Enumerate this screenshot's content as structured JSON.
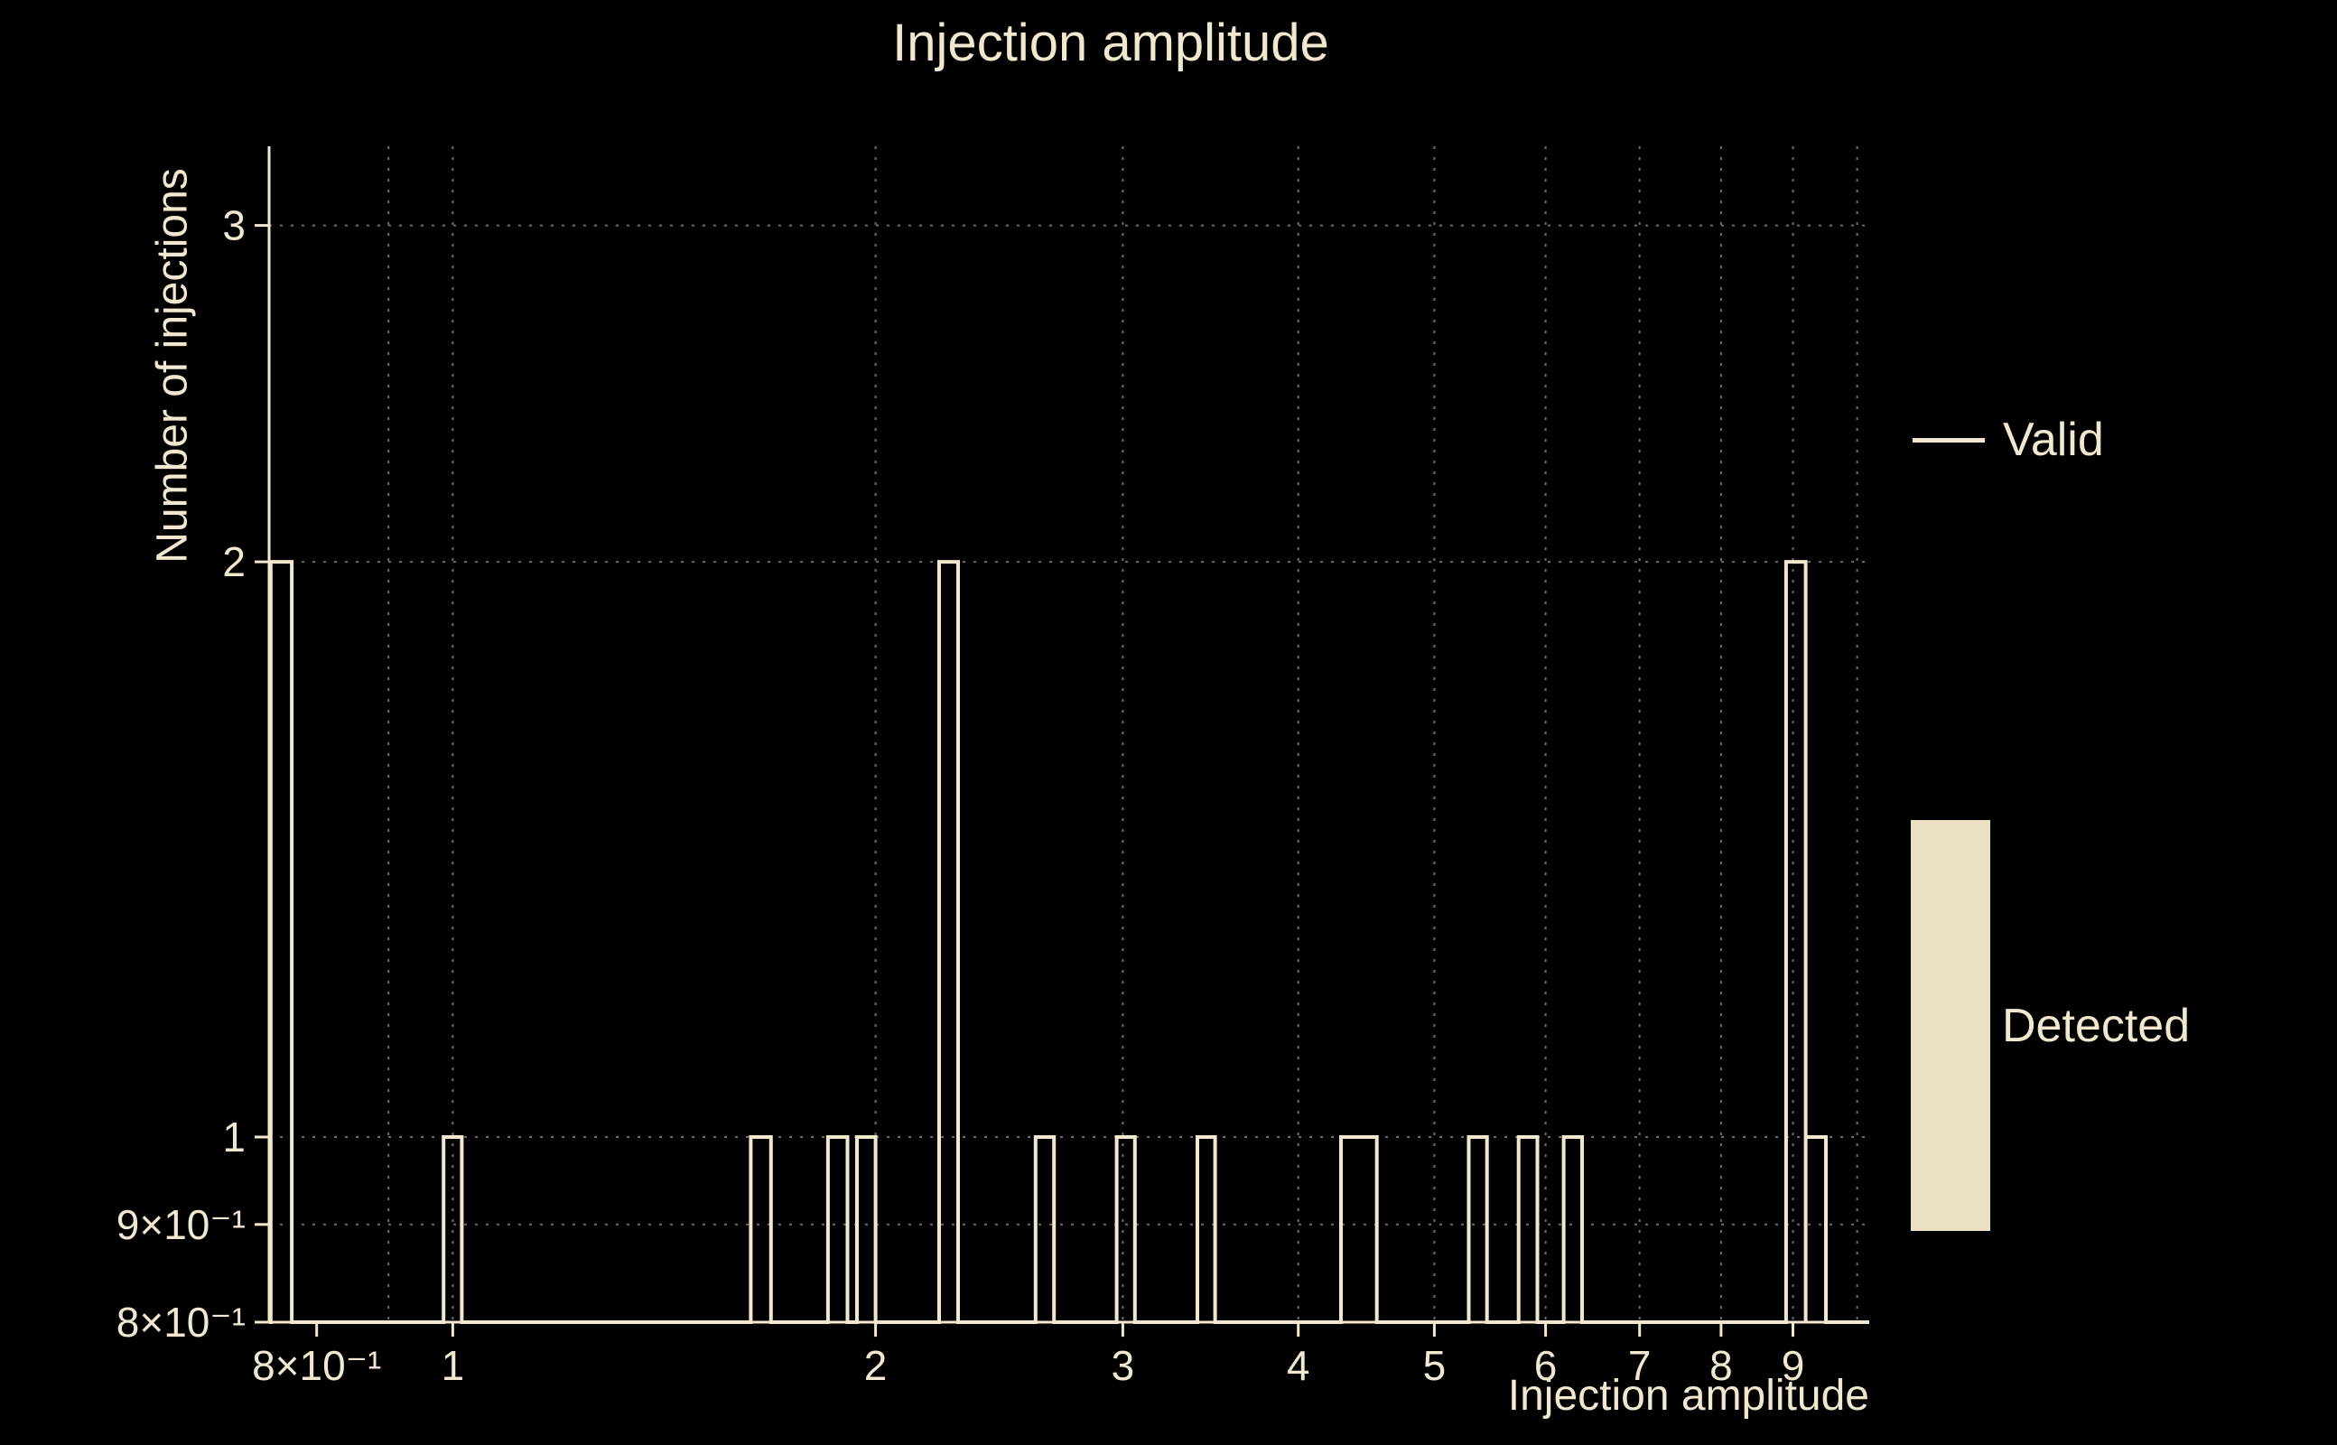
{
  "title": "Injection amplitude",
  "colors": {
    "background": "#000000",
    "foreground": "#f2e7cf",
    "grid": "#6e6e6e",
    "detected_fill": "#ece0c2"
  },
  "chart_data": {
    "type": "bar",
    "title": "Injection amplitude",
    "xlabel": "Injection amplitude",
    "ylabel": "Number of injections",
    "xscale": "log",
    "yscale": "log",
    "xlim": [
      0.74,
      10.2
    ],
    "ylim": [
      0.8,
      3.3
    ],
    "baseline": 0.8,
    "grid": "dotted",
    "legend_position": "right",
    "x_ticks": [
      {
        "value": 0.8,
        "label": "8×10⁻¹"
      },
      {
        "value": 1,
        "label": "1"
      },
      {
        "value": 2,
        "label": "2"
      },
      {
        "value": 3,
        "label": "3"
      },
      {
        "value": 4,
        "label": "4"
      },
      {
        "value": 5,
        "label": "5"
      },
      {
        "value": 6,
        "label": "6"
      },
      {
        "value": 7,
        "label": "7"
      },
      {
        "value": 8,
        "label": "8"
      },
      {
        "value": 9,
        "label": "9"
      }
    ],
    "y_ticks": [
      {
        "value": 0.8,
        "label": "8×10⁻¹"
      },
      {
        "value": 0.9,
        "label": "9×10⁻¹"
      },
      {
        "value": 1,
        "label": "1"
      },
      {
        "value": 2,
        "label": "2"
      },
      {
        "value": 3,
        "label": "3"
      }
    ],
    "x_gridlines": [
      0.9,
      1,
      2,
      3,
      4,
      5,
      6,
      7,
      8,
      9,
      10
    ],
    "y_gridlines": [
      0.9,
      1,
      2,
      3
    ],
    "series": [
      {
        "name": "Valid",
        "style": "step-outline",
        "bins": [
          {
            "x1": 0.742,
            "x2": 0.768,
            "count": 2
          },
          {
            "x1": 0.985,
            "x2": 1.015,
            "count": 1
          },
          {
            "x1": 1.63,
            "x2": 1.685,
            "count": 1
          },
          {
            "x1": 1.85,
            "x2": 1.91,
            "count": 1
          },
          {
            "x1": 1.94,
            "x2": 2.0,
            "count": 1
          },
          {
            "x1": 2.22,
            "x2": 2.29,
            "count": 2
          },
          {
            "x1": 2.6,
            "x2": 2.68,
            "count": 1
          },
          {
            "x1": 2.97,
            "x2": 3.06,
            "count": 1
          },
          {
            "x1": 3.39,
            "x2": 3.49,
            "count": 1
          },
          {
            "x1": 4.29,
            "x2": 4.55,
            "count": 1
          },
          {
            "x1": 5.29,
            "x2": 5.45,
            "count": 1
          },
          {
            "x1": 5.74,
            "x2": 5.92,
            "count": 1
          },
          {
            "x1": 6.18,
            "x2": 6.37,
            "count": 1
          },
          {
            "x1": 8.9,
            "x2": 9.19,
            "count": 2
          },
          {
            "x1": 9.19,
            "x2": 9.5,
            "count": 1
          }
        ]
      },
      {
        "name": "Detected",
        "style": "filled",
        "bins": []
      }
    ],
    "legend": [
      {
        "label": "Valid",
        "swatch": "line"
      },
      {
        "label": "Detected",
        "swatch": "filled-box"
      }
    ]
  }
}
